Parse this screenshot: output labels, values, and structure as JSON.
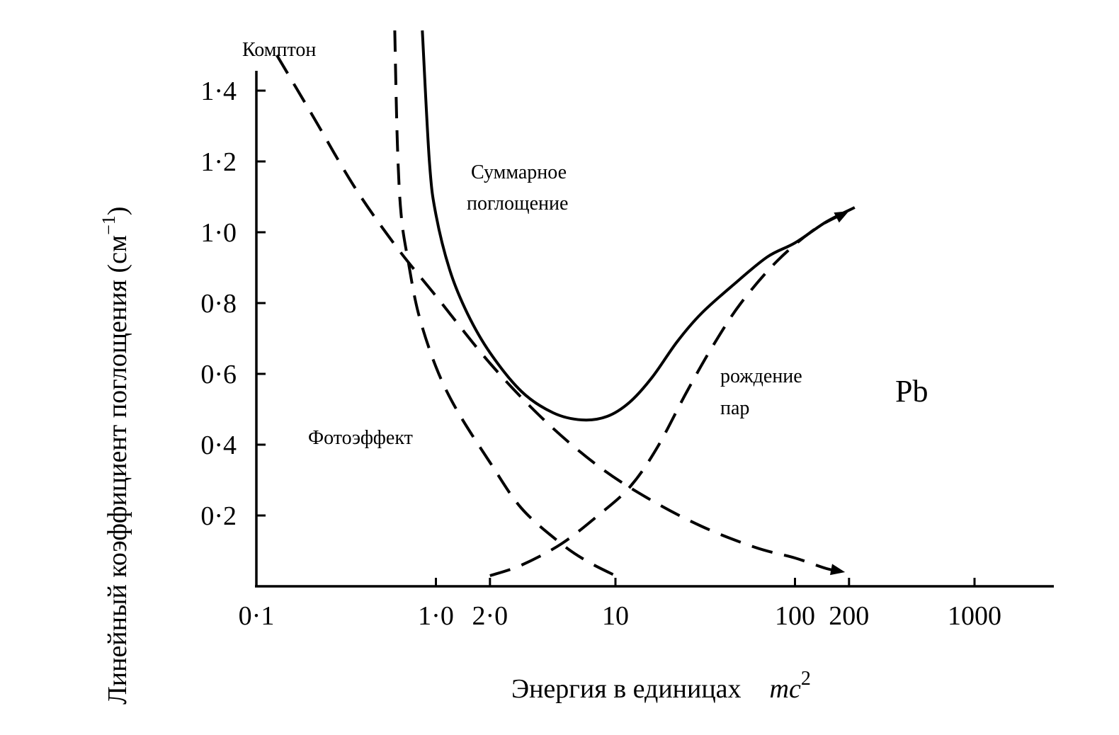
{
  "chart_data": {
    "type": "line",
    "xscale": "log",
    "xlim": [
      0.1,
      2000
    ],
    "ylim": [
      0.03,
      1.53
    ],
    "x_ticks": [
      {
        "value": 0.1,
        "label": "0·1"
      },
      {
        "value": 1,
        "label": "1·0"
      },
      {
        "value": 2,
        "label": "2·0"
      },
      {
        "value": 10,
        "label": "10"
      },
      {
        "value": 100,
        "label": "100"
      },
      {
        "value": 200,
        "label": "200"
      },
      {
        "value": 1000,
        "label": "1000"
      }
    ],
    "y_ticks": [
      {
        "value": 0.2,
        "label": "0·2"
      },
      {
        "value": 0.4,
        "label": "0·4"
      },
      {
        "value": 0.6,
        "label": "0·6"
      },
      {
        "value": 0.8,
        "label": "0·8"
      },
      {
        "value": 1.0,
        "label": "1·0"
      },
      {
        "value": 1.2,
        "label": "1·2"
      },
      {
        "value": 1.4,
        "label": "1·4"
      }
    ],
    "xlabel": "Энергия в единицах",
    "xlabel_unit": "mc",
    "xlabel_unit_sup": "2",
    "ylabel": "Линейный коэффициент поглощения (см",
    "ylabel_sup": "−1",
    "ylabel_close": ")",
    "element_label": "Pb",
    "series": [
      {
        "name": "Суммарное поглощение",
        "label_lines": [
          "Суммарное",
          "поглощение"
        ],
        "style": "solid",
        "points": [
          [
            0.84,
            1.57
          ],
          [
            0.92,
            1.2
          ],
          [
            1.0,
            1.05
          ],
          [
            1.2,
            0.89
          ],
          [
            1.5,
            0.77
          ],
          [
            2.0,
            0.66
          ],
          [
            3.0,
            0.55
          ],
          [
            4.5,
            0.49
          ],
          [
            6.5,
            0.47
          ],
          [
            9.0,
            0.48
          ],
          [
            12.0,
            0.52
          ],
          [
            16.0,
            0.59
          ],
          [
            22.0,
            0.69
          ],
          [
            30.0,
            0.77
          ],
          [
            45.0,
            0.85
          ],
          [
            70.0,
            0.93
          ],
          [
            100.0,
            0.97
          ],
          [
            150.0,
            1.03
          ],
          [
            215.0,
            1.07
          ]
        ]
      },
      {
        "name": "Комптон",
        "style": "dashed",
        "points": [
          [
            0.13,
            1.5
          ],
          [
            0.2,
            1.34
          ],
          [
            0.35,
            1.13
          ],
          [
            0.6,
            0.96
          ],
          [
            1.0,
            0.82
          ],
          [
            2.0,
            0.63
          ],
          [
            4.0,
            0.47
          ],
          [
            8.0,
            0.34
          ],
          [
            15.0,
            0.25
          ],
          [
            30.0,
            0.17
          ],
          [
            60.0,
            0.11
          ],
          [
            100.0,
            0.08
          ],
          [
            150.0,
            0.05
          ],
          [
            190.0,
            0.04
          ]
        ]
      },
      {
        "name": "Фотоэффект",
        "style": "dashed",
        "points": [
          [
            0.59,
            1.57
          ],
          [
            0.61,
            1.25
          ],
          [
            0.64,
            1.05
          ],
          [
            0.7,
            0.92
          ],
          [
            0.8,
            0.77
          ],
          [
            1.0,
            0.62
          ],
          [
            1.3,
            0.5
          ],
          [
            2.0,
            0.35
          ],
          [
            3.0,
            0.22
          ],
          [
            5.0,
            0.12
          ],
          [
            7.0,
            0.07
          ],
          [
            10.0,
            0.03
          ]
        ]
      },
      {
        "name": "рождение пар",
        "label_lines": [
          "рождение",
          "пар"
        ],
        "style": "dashed",
        "points": [
          [
            2.0,
            0.03
          ],
          [
            3.0,
            0.06
          ],
          [
            5.0,
            0.12
          ],
          [
            8.0,
            0.2
          ],
          [
            12.0,
            0.28
          ],
          [
            17.0,
            0.39
          ],
          [
            25.0,
            0.55
          ],
          [
            35.0,
            0.68
          ],
          [
            50.0,
            0.8
          ],
          [
            80.0,
            0.92
          ],
          [
            130.0,
            1.01
          ],
          [
            200.0,
            1.06
          ]
        ]
      }
    ]
  }
}
